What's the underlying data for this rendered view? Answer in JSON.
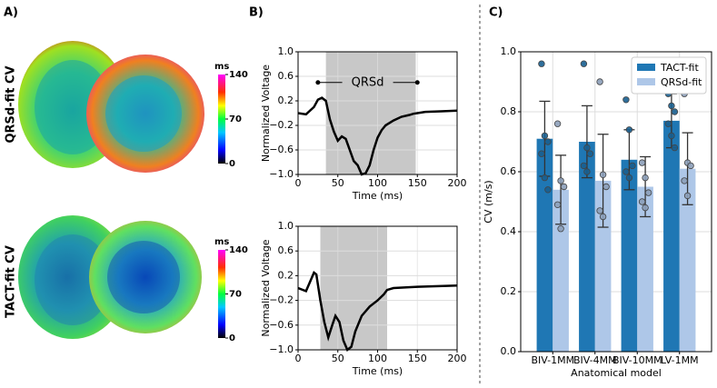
{
  "panel_a": {
    "label": "A)",
    "rows": [
      {
        "title": "QRSd-fit CV"
      },
      {
        "title": "TACT-fit CV"
      }
    ],
    "colorbar": {
      "label": "ms",
      "lim": [
        0,
        140
      ],
      "ticks": [
        0,
        70,
        140
      ]
    }
  },
  "panel_b": {
    "label": "B)"
  },
  "panel_c": {
    "label": "C)"
  },
  "chart_data": [
    {
      "type": "line",
      "xlabel": "Time (ms)",
      "ylabel": "Normalized Voltage",
      "color": "#000000",
      "x": [
        0,
        10,
        20,
        25,
        30,
        35,
        40,
        45,
        50,
        55,
        60,
        65,
        70,
        75,
        80,
        85,
        90,
        95,
        100,
        105,
        110,
        120,
        130,
        140,
        145,
        150,
        160,
        180,
        200
      ],
      "y": [
        0.0,
        -0.02,
        0.1,
        0.22,
        0.25,
        0.2,
        -0.1,
        -0.3,
        -0.45,
        -0.38,
        -0.42,
        -0.6,
        -0.78,
        -0.85,
        -1.0,
        -0.98,
        -0.85,
        -0.6,
        -0.4,
        -0.28,
        -0.2,
        -0.12,
        -0.06,
        -0.03,
        -0.01,
        0.0,
        0.02,
        0.03,
        0.04
      ],
      "shade": [
        35,
        148
      ],
      "annotation": {
        "text": "QRSd",
        "x": [
          25,
          150
        ],
        "y": 0.5
      },
      "xlim": [
        0,
        200
      ],
      "xticks": [
        0,
        50,
        100,
        150,
        200
      ],
      "ylim": [
        -1,
        1
      ],
      "yticks": [
        {
          "value": -1,
          "label": "−1.0"
        },
        {
          "value": -0.6,
          "label": "−0.6"
        },
        {
          "value": -0.2,
          "label": "−0.2"
        },
        {
          "value": 0.2,
          "label": "0.2"
        },
        {
          "value": 0.6,
          "label": "0.6"
        },
        {
          "value": 1,
          "label": "1.0"
        }
      ],
      "grid": true
    },
    {
      "type": "line",
      "xlabel": "Time (ms)",
      "ylabel": "Normalized Voltage",
      "color": "#000000",
      "x": [
        0,
        10,
        15,
        20,
        23,
        28,
        33,
        38,
        43,
        47,
        52,
        57,
        62,
        67,
        72,
        80,
        90,
        100,
        108,
        112,
        120,
        150,
        200
      ],
      "y": [
        0,
        -0.05,
        0.1,
        0.25,
        0.22,
        -0.2,
        -0.55,
        -0.8,
        -0.6,
        -0.45,
        -0.55,
        -0.85,
        -1.0,
        -0.95,
        -0.7,
        -0.45,
        -0.3,
        -0.2,
        -0.1,
        -0.03,
        0,
        0.02,
        0.04
      ],
      "shade": [
        28,
        112
      ],
      "xlim": [
        0,
        200
      ],
      "xticks": [
        0,
        50,
        100,
        150,
        200
      ],
      "ylim": [
        -1,
        1
      ],
      "yticks": [
        {
          "value": -1,
          "label": "−1.0"
        },
        {
          "value": -0.6,
          "label": "−0.6"
        },
        {
          "value": -0.2,
          "label": "−0.2"
        },
        {
          "value": 0.2,
          "label": "0.2"
        },
        {
          "value": 0.6,
          "label": "0.6"
        },
        {
          "value": 1,
          "label": "1.0"
        }
      ],
      "grid": true
    },
    {
      "type": "bar",
      "xlabel": "Anatomical model",
      "ylabel": "CV (m/s)",
      "categories": [
        "BIV-1MM",
        "BIV-4MM",
        "BIV-10MM",
        "LV-1MM"
      ],
      "series": [
        {
          "name": "TACT-fit",
          "color": "#1f77b4",
          "values": [
            0.71,
            0.7,
            0.64,
            0.77
          ],
          "errors": [
            0.125,
            0.12,
            0.1,
            0.09
          ],
          "points": [
            [
              0.96,
              0.72,
              0.7,
              0.66,
              0.58,
              0.54
            ],
            [
              0.96,
              0.68,
              0.66,
              0.62,
              0.6
            ],
            [
              0.84,
              0.74,
              0.62,
              0.6,
              0.58
            ],
            [
              0.86,
              0.82,
              0.8,
              0.76,
              0.72,
              0.68
            ]
          ]
        },
        {
          "name": "QRSd-fit",
          "color": "#aec7e8",
          "values": [
            0.54,
            0.57,
            0.55,
            0.61
          ],
          "errors": [
            0.115,
            0.155,
            0.1,
            0.12
          ],
          "points": [
            [
              0.76,
              0.57,
              0.55,
              0.49,
              0.41
            ],
            [
              0.9,
              0.59,
              0.55,
              0.47,
              0.45
            ],
            [
              0.63,
              0.58,
              0.53,
              0.5,
              0.48
            ],
            [
              0.86,
              0.63,
              0.62,
              0.57,
              0.52
            ]
          ]
        }
      ],
      "ylim": [
        0,
        1
      ],
      "yticks": [
        {
          "value": 0,
          "label": "0.0"
        },
        {
          "value": 0.2,
          "label": "0.2"
        },
        {
          "value": 0.4,
          "label": "0.4"
        },
        {
          "value": 0.6,
          "label": "0.6"
        },
        {
          "value": 0.8,
          "label": "0.8"
        },
        {
          "value": 1,
          "label": "1.0"
        }
      ],
      "grid": true,
      "legend": "upper right"
    }
  ]
}
